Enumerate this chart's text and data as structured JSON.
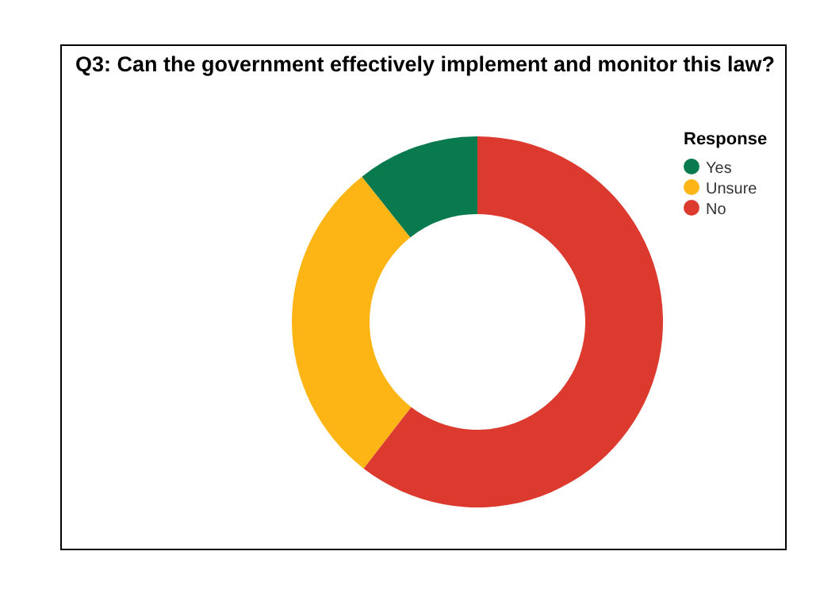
{
  "chart_data": {
    "type": "donut",
    "title": "Q3: Can the government effectively implement and monitor this law?",
    "legend_title": "Response",
    "legend": "top right",
    "categories": [
      "Yes",
      "Unsure",
      "No"
    ],
    "values": [
      10.7,
      28.8,
      60.5
    ],
    "colors": [
      "#087a4e",
      "#fdb515",
      "#dc3a2f"
    ]
  }
}
